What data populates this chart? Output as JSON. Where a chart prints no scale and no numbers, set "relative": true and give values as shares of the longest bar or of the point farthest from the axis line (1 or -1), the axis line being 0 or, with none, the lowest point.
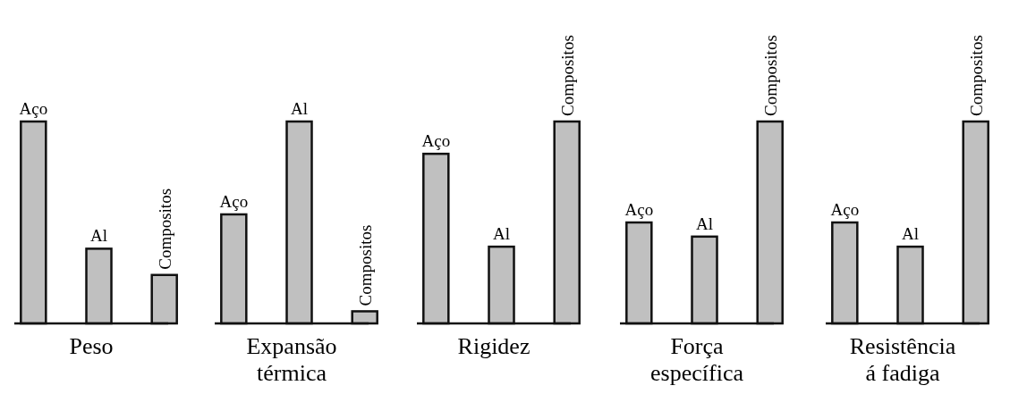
{
  "chart_data": [
    {
      "type": "bar",
      "categories": [
        "Aço",
        "Al",
        "Compositos"
      ],
      "values": [
        1,
        0.37,
        0.24
      ],
      "relative": true,
      "color": "#c0c0c0",
      "xlabel": "Peso"
    },
    {
      "type": "bar",
      "categories": [
        "Aço",
        "Al",
        "Compositos"
      ],
      "values": [
        0.54,
        1,
        0.06
      ],
      "relative": true,
      "color": "#c0c0c0",
      "xlabel": "Expansão\ntérmica"
    },
    {
      "type": "bar",
      "categories": [
        "Aço",
        "Al",
        "Compositos"
      ],
      "values": [
        0.84,
        0.38,
        1
      ],
      "relative": true,
      "color": "#c0c0c0",
      "xlabel": "Rigidez"
    },
    {
      "type": "bar",
      "categories": [
        "Aço",
        "Al",
        "Compositos"
      ],
      "values": [
        0.5,
        0.43,
        1
      ],
      "relative": true,
      "color": "#c0c0c0",
      "xlabel": "Força\nespecífica"
    },
    {
      "type": "bar",
      "categories": [
        "Aço",
        "Al",
        "Compositos"
      ],
      "values": [
        0.5,
        0.38,
        1
      ],
      "relative": true,
      "color": "#c0c0c0",
      "xlabel": "Resistência\ná fadiga"
    }
  ]
}
